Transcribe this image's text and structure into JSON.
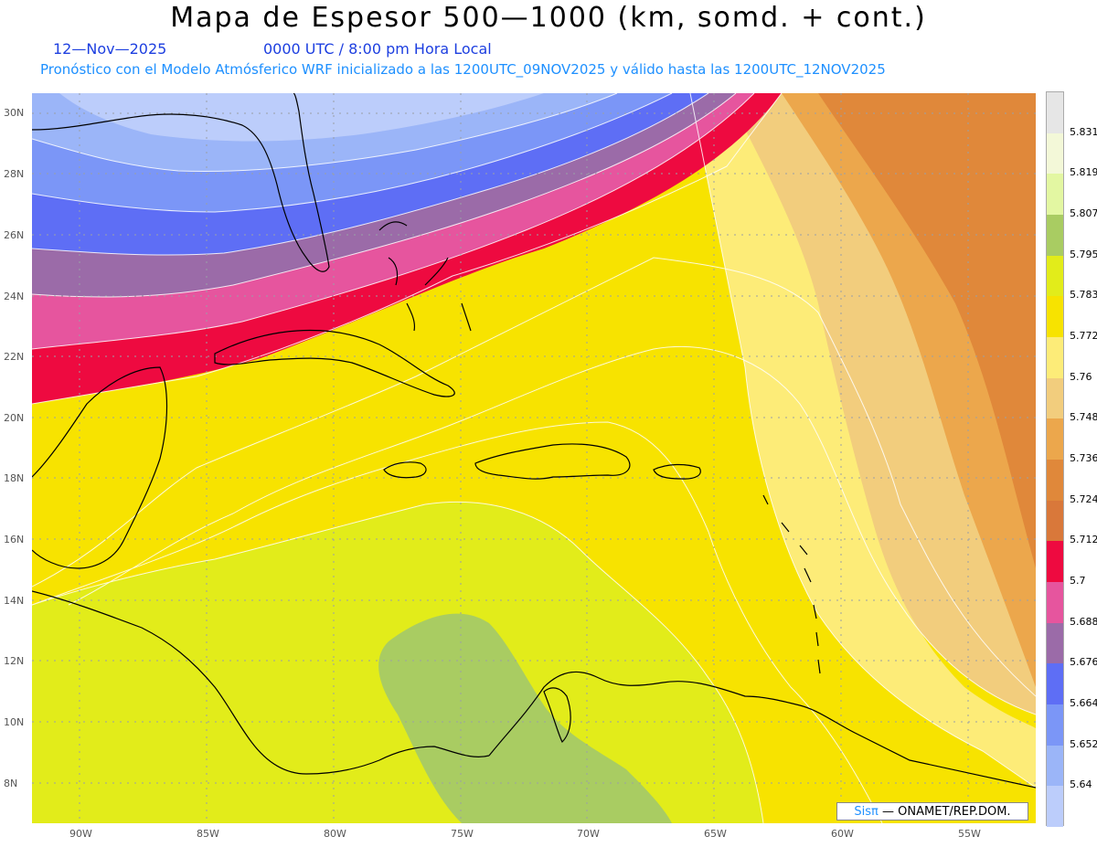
{
  "title": "Mapa de Espesor 500—1000 (km, somd. + cont.)",
  "date": "12—Nov—2025",
  "time": "0000 UTC / 8:00 pm Hora Local",
  "forecast_line": "Pronóstico con el Modelo Atmósferico WRF inicializado a las 1200UTC_09NOV2025 y válido hasta las  1200UTC_12NOV2025",
  "credit": {
    "brand": "Sisπ",
    "text": "— ONAMET/REP.DOM."
  },
  "lat_labels": [
    "30N",
    "28N",
    "26N",
    "24N",
    "22N",
    "20N",
    "18N",
    "16N",
    "14N",
    "12N",
    "10N",
    "8N"
  ],
  "lon_labels": [
    "90W",
    "85W",
    "80W",
    "75W",
    "70W",
    "65W",
    "60W",
    "55W"
  ],
  "colorbar": {
    "labels": [
      "5.831",
      "5.819",
      "5.807",
      "5.795",
      "5.783",
      "5.772",
      "5.76",
      "5.748",
      "5.736",
      "5.724",
      "5.712",
      "5.7",
      "5.688",
      "5.676",
      "5.664",
      "5.652",
      "5.64"
    ],
    "colors_top_to_bottom": [
      "#e6e6e6",
      "#f3f8d8",
      "#e3f7a2",
      "#a9cc62",
      "#e2ec1a",
      "#f7e300",
      "#fdec78",
      "#f2cd7d",
      "#eca74c",
      "#e0883a",
      "#d9783a",
      "#ee0a40",
      "#e6559e",
      "#9b6ba8",
      "#5e6ef5",
      "#7b96f7",
      "#9bb5f8",
      "#bccdfb"
    ]
  },
  "map_layers": {
    "land_green": "#a9cc62",
    "land_lime": "#e2ec1a",
    "yellow": "#f7e300",
    "light_yellow": "#fdec78",
    "tan": "#f2cd7d",
    "orange_light": "#eca74c",
    "orange": "#e0883a",
    "red": "#ee0a40",
    "pink": "#e6559e",
    "purple": "#9b6ba8",
    "blue": "#5e6ef5",
    "blue_mid": "#7b96f7",
    "blue_light": "#9bb5f8",
    "blue_pale": "#bccdfb"
  }
}
